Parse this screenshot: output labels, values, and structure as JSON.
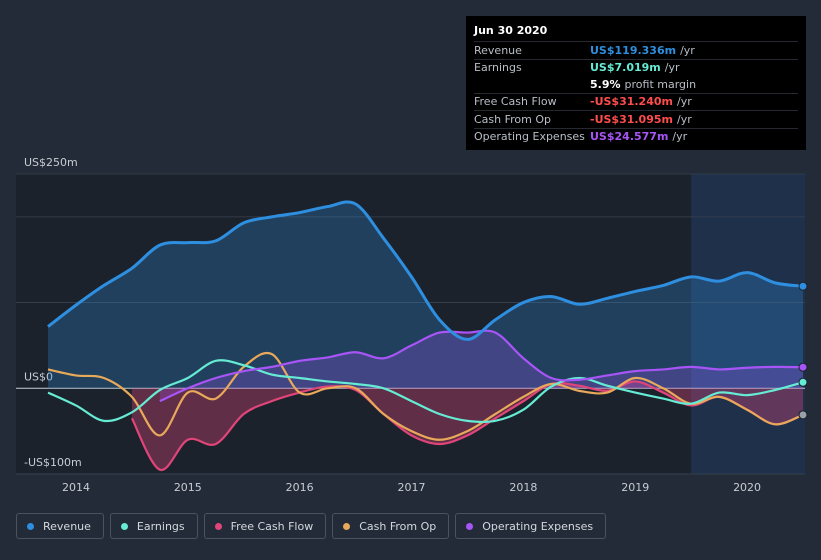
{
  "tooltip": {
    "date": "Jun 30 2020",
    "rows": [
      {
        "label": "Revenue",
        "value": "US$119.336m",
        "unit": "/yr",
        "color": "#2e8fe0"
      },
      {
        "label": "Earnings",
        "value": "US$7.019m",
        "unit": "/yr",
        "color": "#66ebd4"
      },
      {
        "label": "",
        "value": "5.9%",
        "unit": "profit margin",
        "color": "#ffffff"
      },
      {
        "label": "Free Cash Flow",
        "value": "-US$31.240m",
        "unit": "/yr",
        "color": "#ff4d4d"
      },
      {
        "label": "Cash From Op",
        "value": "-US$31.095m",
        "unit": "/yr",
        "color": "#ff4d4d"
      },
      {
        "label": "Operating Expenses",
        "value": "US$24.577m",
        "unit": "/yr",
        "color": "#a855f7"
      }
    ]
  },
  "chart_data": {
    "type": "area",
    "ylim": [
      -100,
      250
    ],
    "y_tick_labels": [
      {
        "value": 250,
        "label": "US$250m"
      },
      {
        "value": 0,
        "label": "US$0"
      },
      {
        "value": -100,
        "label": "-US$100m"
      }
    ],
    "xlim": [
      2013.75,
      2020.5
    ],
    "x_tick_labels": [
      "2014",
      "2015",
      "2016",
      "2017",
      "2018",
      "2019",
      "2020"
    ],
    "forecast_start": 2019.5,
    "series": [
      {
        "name": "Revenue",
        "color": "#2e8fe0",
        "fill": true,
        "points": [
          [
            2013.75,
            72
          ],
          [
            2014.0,
            97
          ],
          [
            2014.25,
            120
          ],
          [
            2014.5,
            140
          ],
          [
            2014.75,
            167
          ],
          [
            2015.0,
            170
          ],
          [
            2015.25,
            172
          ],
          [
            2015.5,
            193
          ],
          [
            2015.75,
            200
          ],
          [
            2016.0,
            205
          ],
          [
            2016.25,
            212
          ],
          [
            2016.5,
            215
          ],
          [
            2016.75,
            175
          ],
          [
            2017.0,
            130
          ],
          [
            2017.25,
            80
          ],
          [
            2017.5,
            57
          ],
          [
            2017.75,
            80
          ],
          [
            2018.0,
            100
          ],
          [
            2018.25,
            107
          ],
          [
            2018.5,
            98
          ],
          [
            2018.75,
            105
          ],
          [
            2019.0,
            113
          ],
          [
            2019.25,
            120
          ],
          [
            2019.5,
            130
          ],
          [
            2019.75,
            125
          ],
          [
            2020.0,
            135
          ],
          [
            2020.25,
            123
          ],
          [
            2020.5,
            119
          ]
        ]
      },
      {
        "name": "Earnings",
        "color": "#66ebd4",
        "fill": false,
        "points": [
          [
            2013.75,
            -5
          ],
          [
            2014.0,
            -20
          ],
          [
            2014.25,
            -38
          ],
          [
            2014.5,
            -28
          ],
          [
            2014.75,
            -2
          ],
          [
            2015.0,
            12
          ],
          [
            2015.25,
            32
          ],
          [
            2015.5,
            27
          ],
          [
            2015.75,
            16
          ],
          [
            2016.0,
            12
          ],
          [
            2016.25,
            8
          ],
          [
            2016.5,
            5
          ],
          [
            2016.75,
            0
          ],
          [
            2017.0,
            -15
          ],
          [
            2017.25,
            -30
          ],
          [
            2017.5,
            -38
          ],
          [
            2017.75,
            -38
          ],
          [
            2018.0,
            -25
          ],
          [
            2018.25,
            2
          ],
          [
            2018.5,
            12
          ],
          [
            2018.75,
            3
          ],
          [
            2019.0,
            -5
          ],
          [
            2019.25,
            -12
          ],
          [
            2019.5,
            -18
          ],
          [
            2019.75,
            -5
          ],
          [
            2020.0,
            -8
          ],
          [
            2020.25,
            -2
          ],
          [
            2020.5,
            7
          ]
        ]
      },
      {
        "name": "Free Cash Flow",
        "color": "#e0457a",
        "fill": true,
        "points": [
          [
            2014.5,
            -35
          ],
          [
            2014.75,
            -95
          ],
          [
            2015.0,
            -60
          ],
          [
            2015.25,
            -65
          ],
          [
            2015.5,
            -30
          ],
          [
            2015.75,
            -15
          ],
          [
            2016.0,
            -5
          ],
          [
            2016.25,
            2
          ],
          [
            2016.5,
            -2
          ],
          [
            2016.75,
            -30
          ],
          [
            2017.0,
            -55
          ],
          [
            2017.25,
            -65
          ],
          [
            2017.5,
            -55
          ],
          [
            2017.75,
            -35
          ],
          [
            2018.0,
            -15
          ],
          [
            2018.25,
            5
          ],
          [
            2018.5,
            3
          ],
          [
            2018.75,
            -3
          ],
          [
            2019.0,
            8
          ],
          [
            2019.25,
            -5
          ],
          [
            2019.5,
            -20
          ],
          [
            2019.75,
            -10
          ],
          [
            2020.0,
            -25
          ],
          [
            2020.25,
            -42
          ],
          [
            2020.5,
            -31
          ]
        ]
      },
      {
        "name": "Cash From Op",
        "color": "#e8a95a",
        "fill": false,
        "points": [
          [
            2013.75,
            22
          ],
          [
            2014.0,
            15
          ],
          [
            2014.25,
            12
          ],
          [
            2014.5,
            -10
          ],
          [
            2014.75,
            -55
          ],
          [
            2015.0,
            -5
          ],
          [
            2015.25,
            -12
          ],
          [
            2015.5,
            25
          ],
          [
            2015.75,
            40
          ],
          [
            2016.0,
            -5
          ],
          [
            2016.25,
            0
          ],
          [
            2016.5,
            0
          ],
          [
            2016.75,
            -30
          ],
          [
            2017.0,
            -50
          ],
          [
            2017.25,
            -60
          ],
          [
            2017.5,
            -50
          ],
          [
            2017.75,
            -30
          ],
          [
            2018.0,
            -10
          ],
          [
            2018.25,
            5
          ],
          [
            2018.5,
            -3
          ],
          [
            2018.75,
            -5
          ],
          [
            2019.0,
            12
          ],
          [
            2019.25,
            0
          ],
          [
            2019.5,
            -18
          ],
          [
            2019.75,
            -10
          ],
          [
            2020.0,
            -25
          ],
          [
            2020.25,
            -42
          ],
          [
            2020.5,
            -31
          ]
        ]
      },
      {
        "name": "Operating Expenses",
        "color": "#a855f7",
        "fill": true,
        "points": [
          [
            2014.75,
            -15
          ],
          [
            2015.0,
            0
          ],
          [
            2015.25,
            12
          ],
          [
            2015.5,
            20
          ],
          [
            2015.75,
            25
          ],
          [
            2016.0,
            32
          ],
          [
            2016.25,
            36
          ],
          [
            2016.5,
            42
          ],
          [
            2016.75,
            35
          ],
          [
            2017.0,
            50
          ],
          [
            2017.25,
            65
          ],
          [
            2017.5,
            65
          ],
          [
            2017.75,
            65
          ],
          [
            2018.0,
            35
          ],
          [
            2018.25,
            12
          ],
          [
            2018.5,
            10
          ],
          [
            2018.75,
            15
          ],
          [
            2019.0,
            20
          ],
          [
            2019.25,
            22
          ],
          [
            2019.5,
            25
          ],
          [
            2019.75,
            22
          ],
          [
            2020.0,
            24
          ],
          [
            2020.25,
            25
          ],
          [
            2020.5,
            24.6
          ]
        ]
      }
    ]
  },
  "legend": {
    "items": [
      {
        "label": "Revenue",
        "color": "#2e8fe0"
      },
      {
        "label": "Earnings",
        "color": "#66ebd4"
      },
      {
        "label": "Free Cash Flow",
        "color": "#e0457a"
      },
      {
        "label": "Cash From Op",
        "color": "#e8a95a"
      },
      {
        "label": "Operating Expenses",
        "color": "#a855f7"
      }
    ]
  }
}
